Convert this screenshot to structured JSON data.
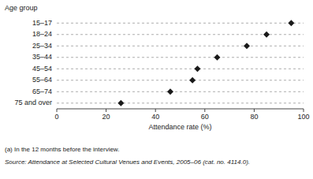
{
  "chart_data": {
    "type": "dot",
    "orientation": "horizontal",
    "categories": [
      "15–17",
      "18–24",
      "25–34",
      "35–44",
      "45–54",
      "55–64",
      "65–74",
      "75 and over"
    ],
    "values": [
      95,
      85,
      77,
      65,
      57,
      55,
      46,
      26
    ],
    "xlabel": "Attendance rate (%)",
    "ylabel": "Age group",
    "xlim": [
      0,
      100
    ],
    "xticks": [
      0,
      20,
      40,
      60,
      80,
      100
    ],
    "marker": "diamond",
    "color": "#1a1a1a",
    "line_style": "dashed",
    "annotations": [
      "(a) In the 12 months before the interview.",
      "Source: Attendance at Selected Cultural Venues and Events, 2005–06 (cat. no. 4114.0)."
    ]
  }
}
